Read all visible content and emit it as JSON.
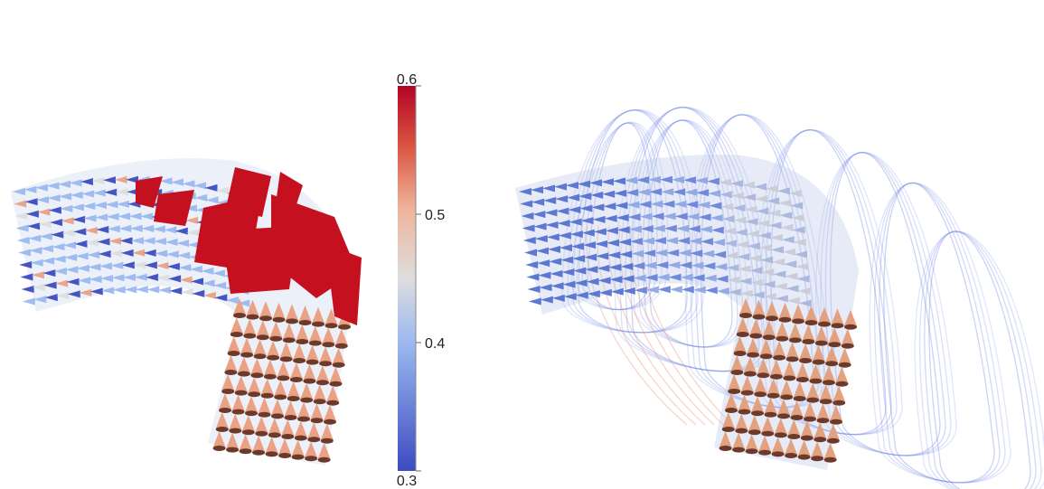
{
  "colorbar": {
    "min": 0.3,
    "max": 0.6,
    "ticks": [
      {
        "value": 0.6,
        "label": "0.6"
      },
      {
        "value": 0.5,
        "label": "0.5"
      },
      {
        "value": 0.4,
        "label": "0.4"
      },
      {
        "value": 0.3,
        "label": "0.3"
      }
    ],
    "colors": {
      "low": "#3b4cc0",
      "mid": "#dddddd",
      "high": "#b40426"
    }
  },
  "panels": [
    {
      "name": "left-glyph-field",
      "glyph": "cone-arrows",
      "colors": [
        "#3b4cc0",
        "#9bb8f0",
        "#dddddd",
        "#eaa184",
        "#c5001b"
      ]
    },
    {
      "name": "right-glyph-field-with-streamlines",
      "glyph": "cone-arrows",
      "streamline_color": "#6b82e6"
    }
  ]
}
